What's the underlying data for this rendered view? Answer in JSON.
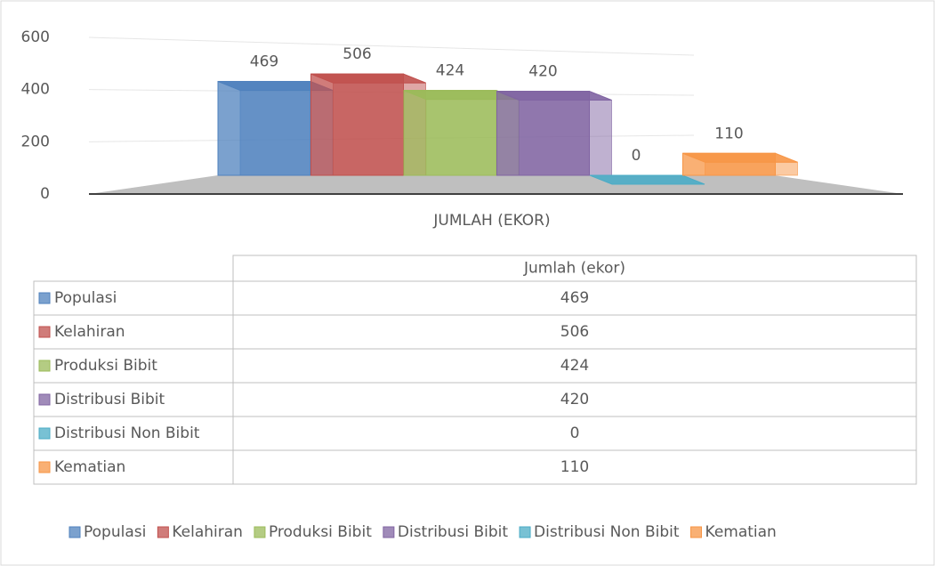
{
  "chart_data": {
    "type": "bar3d",
    "categories": [
      "JUMLAH (EKOR)"
    ],
    "table_header": "Jumlah (ekor)",
    "ylim": [
      0,
      600
    ],
    "yticks": [
      0,
      200,
      400,
      600
    ],
    "grid": true,
    "legend": "bottom",
    "series": [
      {
        "name": "Populasi",
        "color": "#4f81bd",
        "values": [
          469
        ]
      },
      {
        "name": "Kelahiran",
        "color": "#c0504d",
        "values": [
          506
        ]
      },
      {
        "name": "Produksi Bibit",
        "color": "#9bbb59",
        "values": [
          424
        ]
      },
      {
        "name": "Distribusi Bibit",
        "color": "#8064a2",
        "values": [
          420
        ]
      },
      {
        "name": "Distribusi Non Bibit",
        "color": "#4bacc6",
        "values": [
          0
        ]
      },
      {
        "name": "Kematian",
        "color": "#f79646",
        "values": [
          110
        ]
      }
    ]
  }
}
